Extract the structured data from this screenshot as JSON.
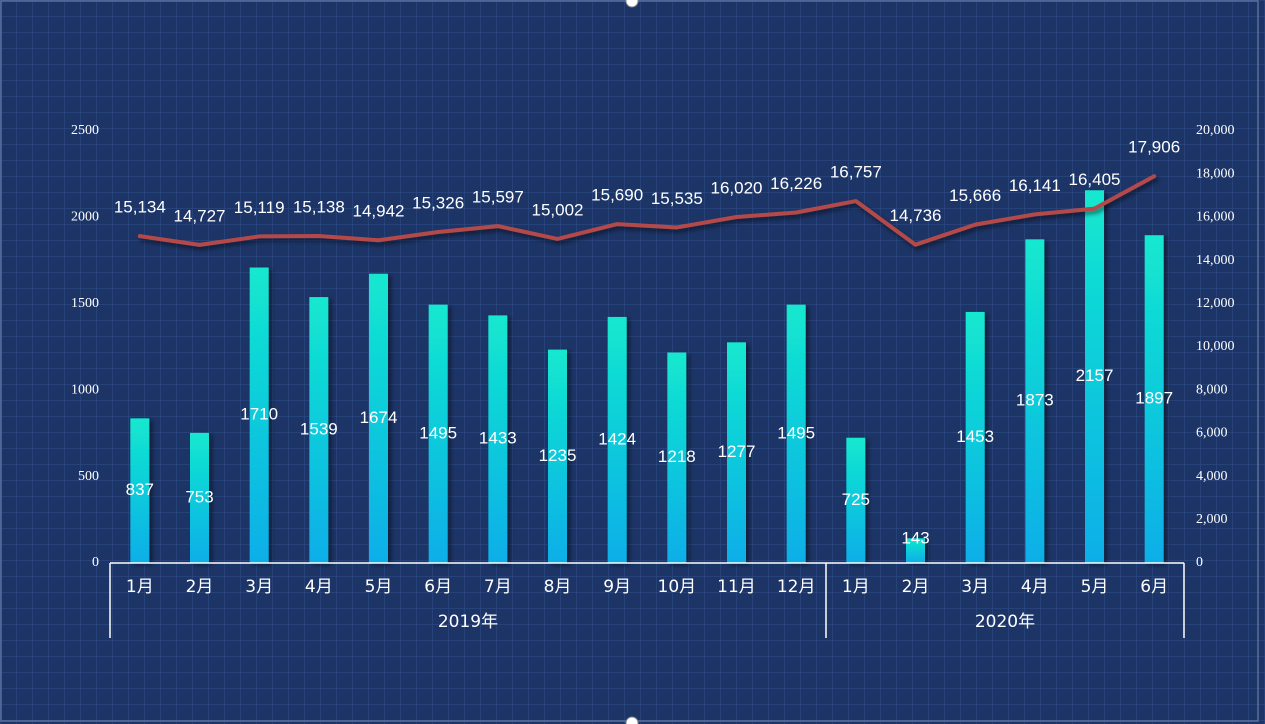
{
  "colors": {
    "background": "#1c3466",
    "grid": "#2d4c86",
    "bar_top": "#13e8cf",
    "bar_bottom": "#0aaee8",
    "line": "#b34848",
    "text": "#ffffff",
    "axis": "#ffffff"
  },
  "chart_data": {
    "type": "bar",
    "title": "",
    "categories": [
      "1月",
      "2月",
      "3月",
      "4月",
      "5月",
      "6月",
      "7月",
      "8月",
      "9月",
      "10月",
      "11月",
      "12月",
      "1月",
      "2月",
      "3月",
      "4月",
      "5月",
      "6月"
    ],
    "groups": [
      {
        "label": "2019年",
        "start": 0,
        "count": 12
      },
      {
        "label": "2020年",
        "start": 12,
        "count": 6
      }
    ],
    "series": [
      {
        "name": "bars",
        "type": "bar",
        "axis": "left",
        "values": [
          837,
          753,
          1710,
          1539,
          1674,
          1495,
          1433,
          1235,
          1424,
          1218,
          1277,
          1495,
          725,
          143,
          1453,
          1873,
          2157,
          1897
        ],
        "labels": [
          "837",
          "753",
          "1710",
          "1539",
          "1674",
          "1495",
          "1433",
          "1235",
          "1424",
          "1218",
          "1277",
          "1495",
          "725",
          "143",
          "1453",
          "1873",
          "2157",
          "1897"
        ]
      },
      {
        "name": "line",
        "type": "line",
        "axis": "right",
        "values": [
          15134,
          14727,
          15119,
          15138,
          14942,
          15326,
          15597,
          15002,
          15690,
          15535,
          16020,
          16226,
          16757,
          14736,
          15666,
          16141,
          16405,
          17906
        ],
        "labels": [
          "15,134",
          "14,727",
          "15,119",
          "15,138",
          "14,942",
          "15,326",
          "15,597",
          "15,002",
          "15,690",
          "15,535",
          "16,020",
          "16,226",
          "16,757",
          "14,736",
          "15,666",
          "16,141",
          "16,405",
          "17,906"
        ]
      }
    ],
    "left_axis": {
      "ylim": [
        0,
        2500
      ],
      "ticks": [
        0,
        500,
        1000,
        1500,
        2000,
        2500
      ],
      "tick_labels": [
        "0",
        "500",
        "1000",
        "1500",
        "2000",
        "2500"
      ]
    },
    "right_axis": {
      "ylim": [
        0,
        20000
      ],
      "ticks": [
        0,
        2000,
        4000,
        6000,
        8000,
        10000,
        12000,
        14000,
        16000,
        18000,
        20000
      ],
      "tick_labels": [
        "0",
        "2,000",
        "4,000",
        "6,000",
        "8,000",
        "10,000",
        "12,000",
        "14,000",
        "16,000",
        "18,000",
        "20,000"
      ]
    },
    "grid": true,
    "legend": "none"
  }
}
